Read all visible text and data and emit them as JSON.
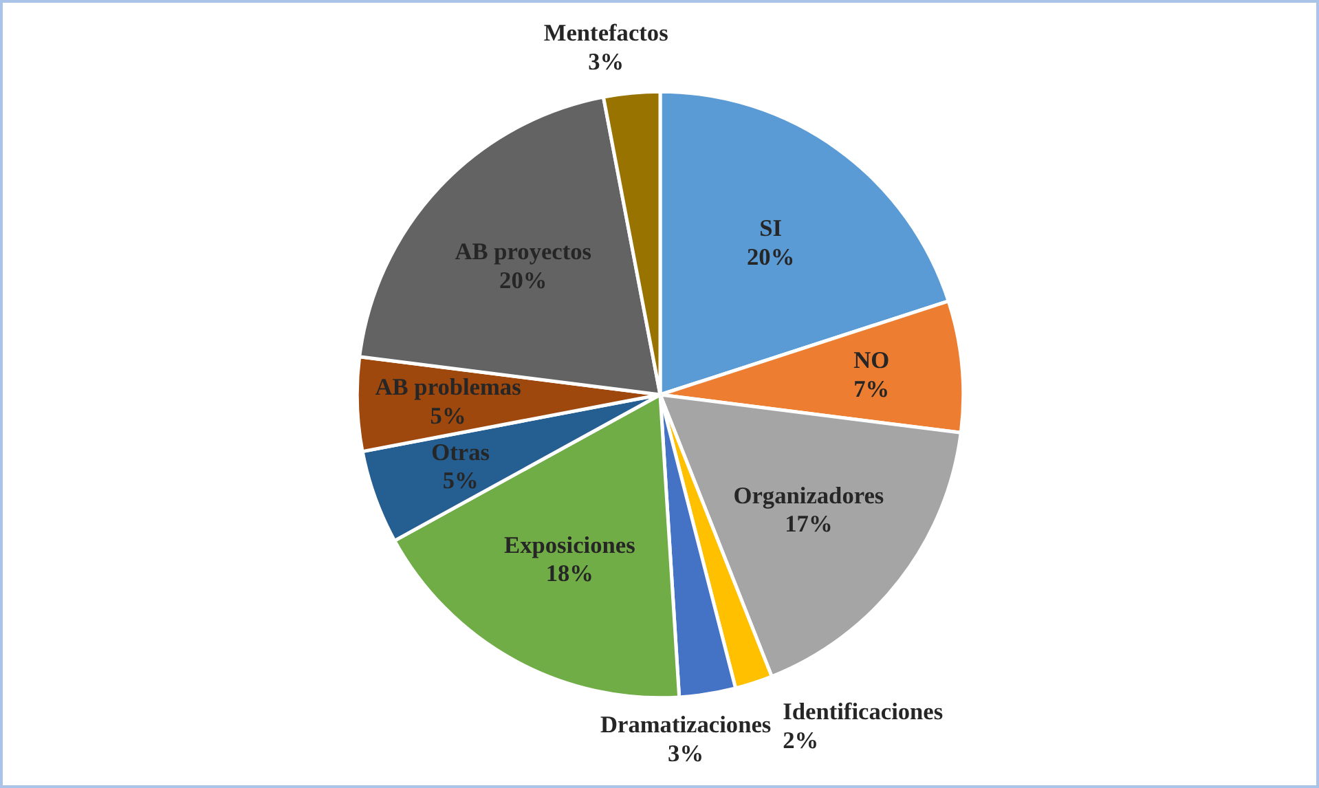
{
  "chart_data": {
    "type": "pie",
    "categories": [
      "SI",
      "NO",
      "Organizadores",
      "Identificaciones",
      "Dramatizaciones",
      "Exposiciones",
      "Otras",
      "AB problemas",
      "AB proyectos",
      "Mentefactos"
    ],
    "values": [
      20,
      7,
      17,
      2,
      3,
      18,
      5,
      5,
      20,
      3
    ],
    "value_labels": [
      "20%",
      "7%",
      "17%",
      "2%",
      "3%",
      "18%",
      "5%",
      "5%",
      "20%",
      "3%"
    ],
    "colors": [
      "#5b9bd5",
      "#ed7d31",
      "#a5a5a5",
      "#ffc000",
      "#4472c4",
      "#70ad47",
      "#255e91",
      "#9e480e",
      "#636363",
      "#997300"
    ],
    "legend": false
  }
}
